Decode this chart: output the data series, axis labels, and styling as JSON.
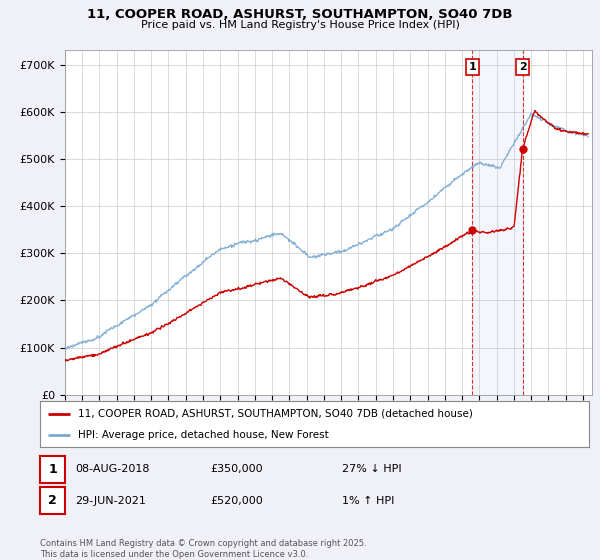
{
  "title_line1": "11, COOPER ROAD, ASHURST, SOUTHAMPTON, SO40 7DB",
  "title_line2": "Price paid vs. HM Land Registry's House Price Index (HPI)",
  "ylabel_ticks": [
    "£0",
    "£100K",
    "£200K",
    "£300K",
    "£400K",
    "£500K",
    "£600K",
    "£700K"
  ],
  "ytick_vals": [
    0,
    100000,
    200000,
    300000,
    400000,
    500000,
    600000,
    700000
  ],
  "ylim": [
    0,
    730000
  ],
  "xlim_start": 1995.0,
  "xlim_end": 2025.5,
  "legend_line1": "11, COOPER ROAD, ASHURST, SOUTHAMPTON, SO40 7DB (detached house)",
  "legend_line2": "HPI: Average price, detached house, New Forest",
  "transaction1_date": "08-AUG-2018",
  "transaction1_price": "£350,000",
  "transaction1_hpi": "27% ↓ HPI",
  "transaction2_date": "29-JUN-2021",
  "transaction2_price": "£520,000",
  "transaction2_hpi": "1% ↑ HPI",
  "footer": "Contains HM Land Registry data © Crown copyright and database right 2025.\nThis data is licensed under the Open Government Licence v3.0.",
  "transaction1_x": 2018.6,
  "transaction1_y": 350000,
  "transaction2_x": 2021.5,
  "transaction2_y": 520000,
  "vline1_x": 2018.6,
  "vline2_x": 2021.5,
  "bg_color": "#f0f0f8",
  "plot_bg_color": "#ffffff",
  "hpi_color": "#7aaad4",
  "price_color": "#cc0000",
  "grid_color": "#cccccc"
}
